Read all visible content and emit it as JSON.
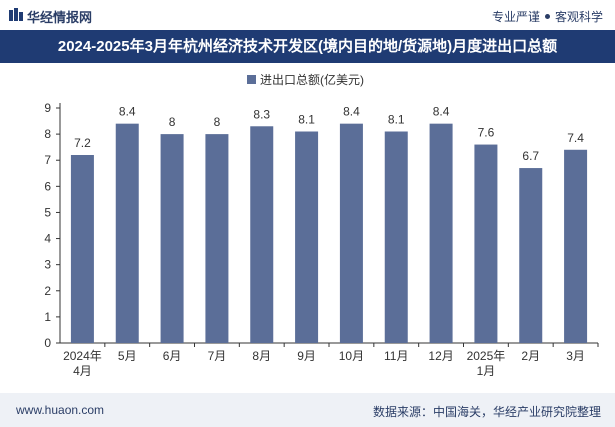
{
  "header": {
    "brand": "华经情报网",
    "tag_left": "专业严谨",
    "tag_right": "客观科学"
  },
  "title": "2024-2025年3月年杭州经济技术开发区(境内目的地/货源地)月度进出口总额",
  "footer": {
    "website": "www.huaon.com",
    "source": "数据来源：中国海关，华经产业研究院整理"
  },
  "colors": {
    "bar": "#5b6e98",
    "title_bg": "#1f3b73",
    "axis": "#333333"
  },
  "chart_data": {
    "type": "bar",
    "title": "2024-2025年3月年杭州经济技术开发区(境内目的地/货源地)月度进出口总额",
    "categories": [
      "2024年4月",
      "5月",
      "6月",
      "7月",
      "8月",
      "9月",
      "10月",
      "11月",
      "12月",
      "2025年1月",
      "2月",
      "3月"
    ],
    "series": [
      {
        "name": "进出口总额(亿美元)",
        "values": [
          7.2,
          8.4,
          8,
          8,
          8.3,
          8.1,
          8.4,
          8.1,
          8.4,
          7.6,
          6.7,
          7.4
        ]
      }
    ],
    "value_labels": [
      "7.2",
      "8.4",
      "8",
      "8",
      "8.3",
      "8.1",
      "8.4",
      "8.1",
      "8.4",
      "7.6",
      "6.7",
      "7.4"
    ],
    "yticks": [
      "0",
      "1",
      "2",
      "3",
      "4",
      "5",
      "6",
      "7",
      "8",
      "9"
    ],
    "ylim": [
      0,
      9
    ],
    "legend": "top-center",
    "grid": false
  }
}
